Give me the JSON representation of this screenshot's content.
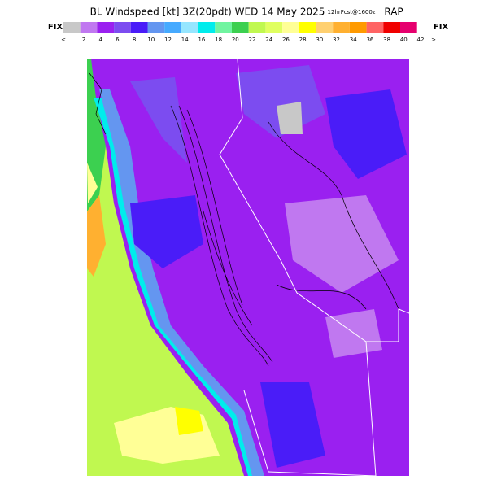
{
  "header": {
    "title": "BL Windspeed [kt] 3Z(20pdt) WED 14 May 2025",
    "forecast": "12hrFcst@1600z",
    "model": "RAP"
  },
  "legend": {
    "left_label": "FIX",
    "right_label": "FIX",
    "colors": [
      "#c8c8c8",
      "#c078f0",
      "#9a20f0",
      "#7c4cf0",
      "#4a1cf8",
      "#6496f0",
      "#46aaff",
      "#96e6ff",
      "#00ecec",
      "#70f4a0",
      "#3cd050",
      "#c0f850",
      "#e0ff60",
      "#ffff96",
      "#ffff00",
      "#ffd070",
      "#ffb030",
      "#ff9a00",
      "#ff6464",
      "#f00000",
      "#e6006e",
      "#ff60e0",
      "#f000c8"
    ],
    "labels": [
      "<",
      "2",
      "4",
      "6",
      "8",
      "10",
      "12",
      "14",
      "16",
      "18",
      "20",
      "22",
      "24",
      "26",
      "28",
      "30",
      "32",
      "34",
      "36",
      "38",
      "40",
      "42",
      ">"
    ]
  }
}
